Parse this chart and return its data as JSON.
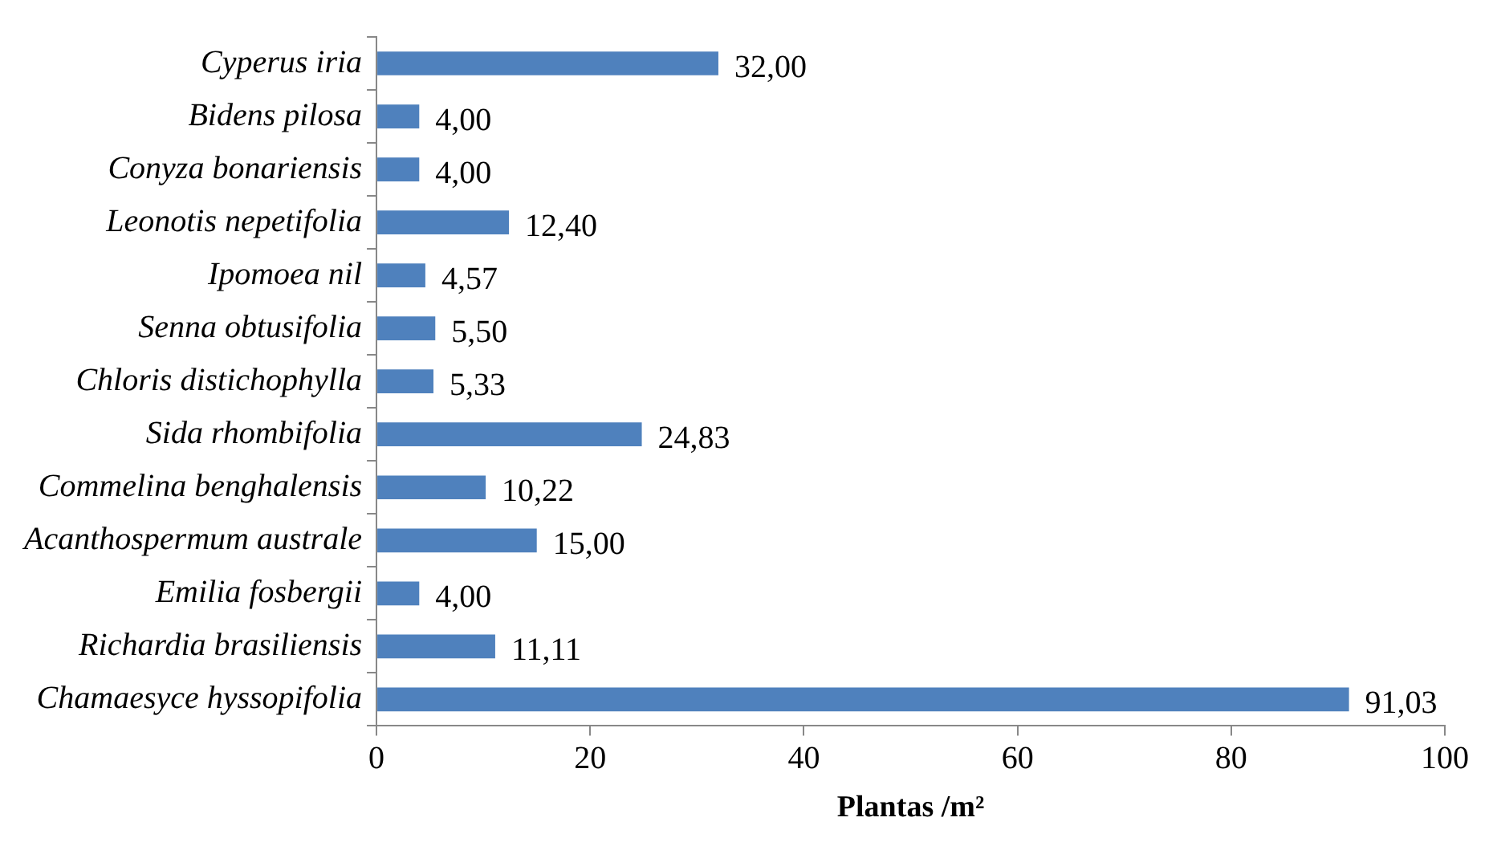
{
  "chart_data": {
    "type": "bar",
    "orientation": "horizontal",
    "xlabel": "Plantas /m²",
    "categories": [
      "Cyperus iria",
      "Bidens pilosa",
      "Conyza bonariensis",
      "Leonotis nepetifolia",
      "Ipomoea nil",
      "Senna obtusifolia",
      "Chloris distichophylla",
      "Sida rhombifolia",
      "Commelina benghalensis",
      "Acanthospermum australe",
      "Emilia fosbergii",
      "Richardia brasiliensis",
      "Chamaesyce hyssopifolia"
    ],
    "values": [
      32,
      4,
      4,
      12.4,
      4.57,
      5.5,
      5.33,
      24.83,
      10.22,
      15,
      4,
      11.11,
      91.03
    ],
    "value_labels": [
      "32,00",
      "4,00",
      "4,00",
      "12,40",
      "4,57",
      "5,50",
      "5,33",
      "24,83",
      "10,22",
      "15,00",
      "4,00",
      "11,11",
      "91,03"
    ],
    "color": "#4f81bd",
    "xlim": [
      0,
      100
    ],
    "xticks": [
      0,
      20,
      40,
      60,
      80,
      100
    ],
    "grid": false,
    "legend": false
  }
}
